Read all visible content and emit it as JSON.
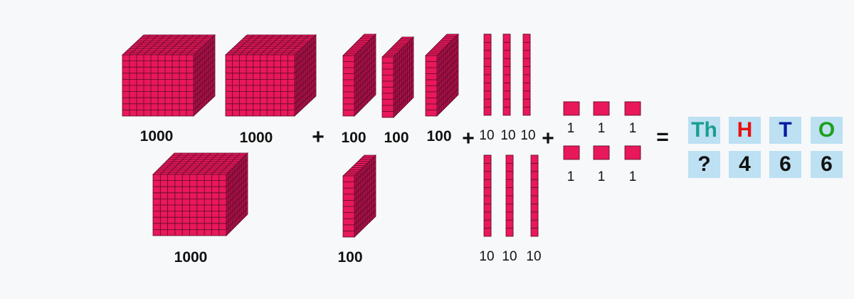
{
  "colors": {
    "block": "#e8185a",
    "block_side": "#b0104a",
    "grid": "#5a0a28",
    "cell_bg": "#bde0f2",
    "th": "#1a9e8e",
    "h": "#e81010",
    "t": "#0a1aa0",
    "o": "#1e9e1e",
    "digit": "#111111"
  },
  "labels": {
    "thousands": [
      "1000",
      "1000",
      "1000"
    ],
    "hundreds": [
      "100",
      "100",
      "100",
      "100"
    ],
    "tens": [
      "10",
      "10",
      "10",
      "10",
      "10",
      "10"
    ],
    "ones": [
      "1",
      "1",
      "1",
      "1",
      "1",
      "1"
    ]
  },
  "operators": {
    "plus": "+",
    "equals": "="
  },
  "place_value_table": {
    "headers": [
      "Th",
      "H",
      "T",
      "O"
    ],
    "values": [
      "?",
      "4",
      "6",
      "6"
    ]
  }
}
